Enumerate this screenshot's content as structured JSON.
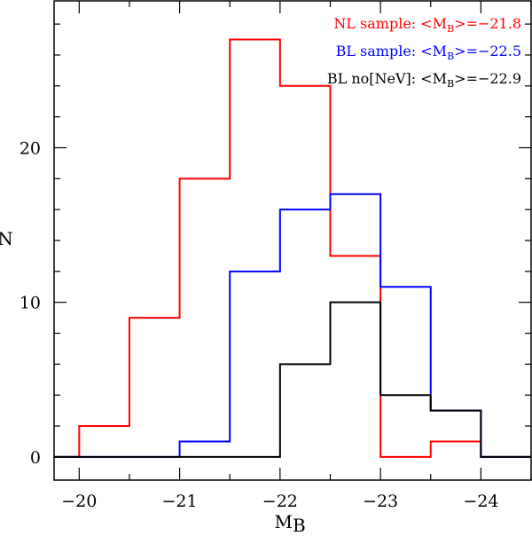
{
  "chart_data": {
    "type": "step-histogram",
    "xlabel": "M",
    "xlabel_sub": "B",
    "ylabel": "N",
    "xlim": [
      -19.75,
      -24.5
    ],
    "ylim": [
      -1.5,
      29.5
    ],
    "x_ticks": [
      -20,
      -21,
      -22,
      -23,
      -24
    ],
    "x_tick_labels": [
      "−20",
      "−21",
      "−22",
      "−23",
      "−24"
    ],
    "y_ticks": [
      0,
      10,
      20
    ],
    "y_tick_labels": [
      "0",
      "10",
      "20"
    ],
    "bin_edges": [
      -19.75,
      -20.0,
      -20.5,
      -21.0,
      -21.5,
      -22.0,
      -22.5,
      -23.0,
      -23.5,
      -24.0,
      -24.5
    ],
    "series": [
      {
        "name": "NL sample",
        "color": "#ff0000",
        "counts": [
          0,
          2,
          9,
          18,
          27,
          24,
          13,
          0,
          1,
          0
        ],
        "legend_prefix": "NL sample: <M",
        "legend_sub": "B",
        "legend_suffix": ">=−21.8"
      },
      {
        "name": "BL sample",
        "color": "#0000ff",
        "counts": [
          0,
          0,
          0,
          1,
          12,
          16,
          17,
          11,
          3,
          0
        ],
        "legend_prefix": "BL sample: <M",
        "legend_sub": "B",
        "legend_suffix": ">=−22.5"
      },
      {
        "name": "BL no[NeV]",
        "color": "#000000",
        "counts": [
          0,
          0,
          0,
          0,
          0,
          6,
          10,
          4,
          3,
          0
        ],
        "legend_prefix": "BL no[NeV]: <M",
        "legend_sub": "B",
        "legend_suffix": ">=−22.9"
      }
    ],
    "legend_position": "top-right",
    "grid": false
  }
}
